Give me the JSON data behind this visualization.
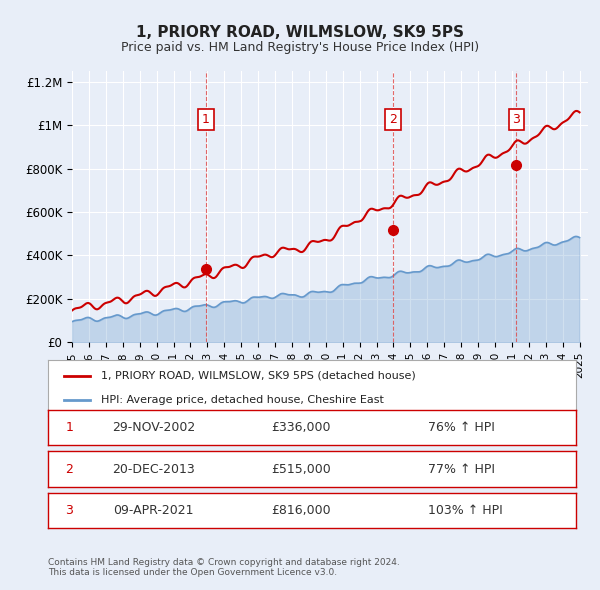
{
  "title": "1, PRIORY ROAD, WILMSLOW, SK9 5PS",
  "subtitle": "Price paid vs. HM Land Registry's House Price Index (HPI)",
  "xlabel": "",
  "ylabel": "",
  "ylim": [
    0,
    1250000
  ],
  "yticks": [
    0,
    200000,
    400000,
    600000,
    800000,
    1000000,
    1200000
  ],
  "ytick_labels": [
    "£0",
    "£200K",
    "£400K",
    "£600K",
    "£800K",
    "£1M",
    "£1.2M"
  ],
  "xlim_start": 1995.0,
  "xlim_end": 2025.5,
  "background_color": "#f0f4ff",
  "plot_bg_color": "#f0f4ff",
  "grid_color": "#ffffff",
  "red_line_color": "#cc0000",
  "blue_line_color": "#6699cc",
  "sale_dates": [
    2002.91,
    2013.97,
    2021.27
  ],
  "sale_prices": [
    336000,
    515000,
    816000
  ],
  "sale_labels": [
    "1",
    "2",
    "3"
  ],
  "vline_color": "#dd4444",
  "legend_label_red": "1, PRIORY ROAD, WILMSLOW, SK9 5PS (detached house)",
  "legend_label_blue": "HPI: Average price, detached house, Cheshire East",
  "table_rows": [
    {
      "num": "1",
      "date": "29-NOV-2002",
      "price": "£336,000",
      "hpi": "76% ↑ HPI"
    },
    {
      "num": "2",
      "date": "20-DEC-2013",
      "price": "£515,000",
      "hpi": "77% ↑ HPI"
    },
    {
      "num": "3",
      "date": "09-APR-2021",
      "price": "£816,000",
      "hpi": "103% ↑ HPI"
    }
  ],
  "footer": "Contains HM Land Registry data © Crown copyright and database right 2024.\nThis data is licensed under the Open Government Licence v3.0."
}
